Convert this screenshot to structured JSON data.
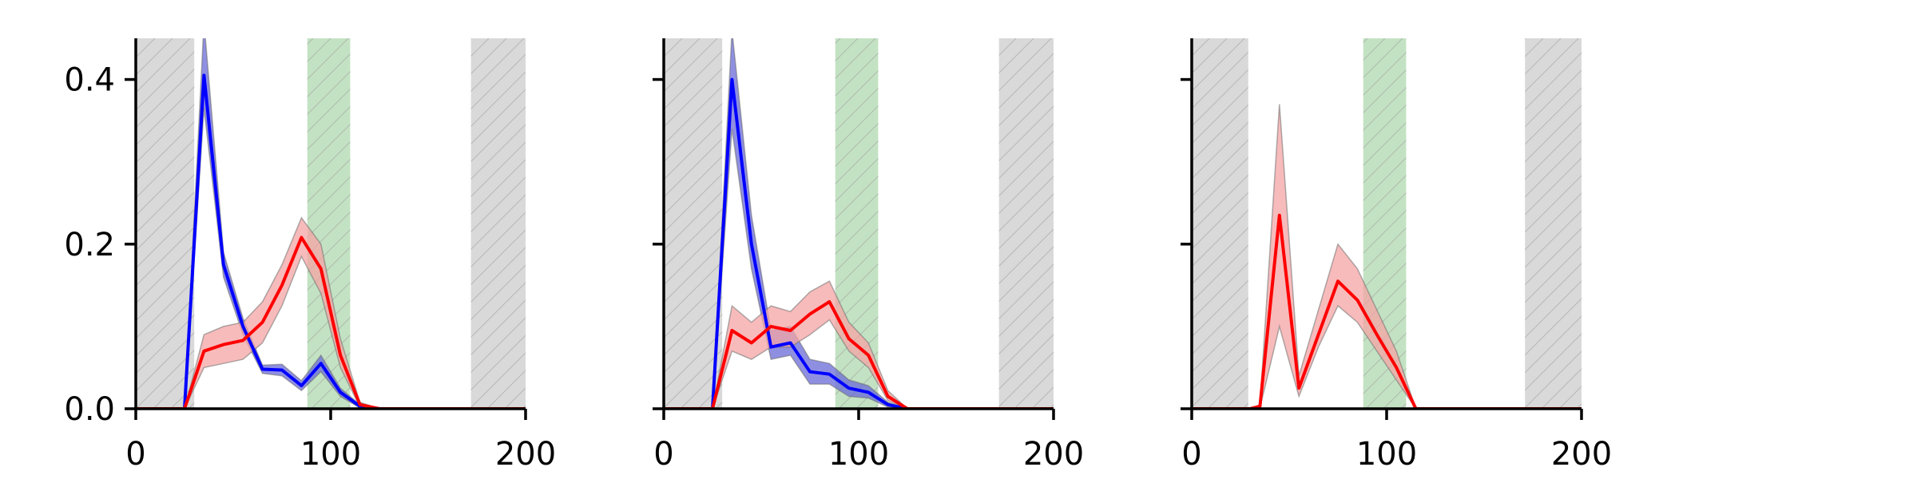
{
  "chart_data": [
    {
      "type": "line",
      "title": "",
      "xlabel": "",
      "ylabel": "",
      "xlim": [
        0,
        200
      ],
      "ylim": [
        0,
        0.45
      ],
      "xticks": [
        0,
        100,
        200
      ],
      "xtick_labels": [
        "0",
        "100",
        "200"
      ],
      "yticks": [
        0.0,
        0.2,
        0.4
      ],
      "ytick_labels": [
        "0.0",
        "0.2",
        "0.4"
      ],
      "show_ytick_labels": true,
      "grid": false,
      "shaded_regions": [
        {
          "x0": 0,
          "x1": 30,
          "color": "#d9d9d9",
          "hatch": true
        },
        {
          "x0": 88,
          "x1": 110,
          "color": "#c3e2c3",
          "hatch": true
        },
        {
          "x0": 172,
          "x1": 200,
          "color": "#d9d9d9",
          "hatch": true
        }
      ],
      "series": [
        {
          "color": "#0000ff",
          "band_color": "#6a6ad8",
          "x": [
            0,
            10,
            20,
            25,
            35,
            45,
            55,
            65,
            75,
            85,
            95,
            105,
            115,
            125,
            200
          ],
          "y": [
            0,
            0,
            0,
            0,
            0.405,
            0.175,
            0.1,
            0.048,
            0.047,
            0.028,
            0.055,
            0.02,
            0.003,
            0,
            0
          ],
          "lower": [
            0,
            0,
            0,
            0,
            0.365,
            0.16,
            0.09,
            0.043,
            0.04,
            0.022,
            0.045,
            0.015,
            0.001,
            0,
            0
          ],
          "upper": [
            0,
            0,
            0,
            0,
            0.47,
            0.19,
            0.11,
            0.053,
            0.054,
            0.034,
            0.065,
            0.025,
            0.005,
            0,
            0
          ]
        },
        {
          "color": "#ff0000",
          "band_color": "#f4a4a4",
          "x": [
            0,
            10,
            20,
            25,
            35,
            45,
            55,
            65,
            75,
            85,
            95,
            105,
            115,
            125,
            200
          ],
          "y": [
            0,
            0,
            0,
            0,
            0.07,
            0.078,
            0.083,
            0.105,
            0.15,
            0.208,
            0.17,
            0.065,
            0.005,
            0,
            0
          ],
          "lower": [
            0,
            0,
            0,
            0,
            0.05,
            0.055,
            0.06,
            0.08,
            0.125,
            0.185,
            0.14,
            0.05,
            0.002,
            0,
            0
          ],
          "upper": [
            0,
            0,
            0,
            0,
            0.09,
            0.1,
            0.105,
            0.13,
            0.175,
            0.232,
            0.2,
            0.085,
            0.008,
            0,
            0
          ]
        }
      ]
    },
    {
      "type": "line",
      "title": "",
      "xlabel": "",
      "ylabel": "",
      "xlim": [
        0,
        200
      ],
      "ylim": [
        0,
        0.45
      ],
      "xticks": [
        0,
        100,
        200
      ],
      "xtick_labels": [
        "0",
        "100",
        "200"
      ],
      "yticks": [
        0.0,
        0.2,
        0.4
      ],
      "ytick_labels": [
        "",
        "",
        ""
      ],
      "show_ytick_labels": false,
      "grid": false,
      "shaded_regions": [
        {
          "x0": 0,
          "x1": 30,
          "color": "#d9d9d9",
          "hatch": true
        },
        {
          "x0": 88,
          "x1": 110,
          "color": "#c3e2c3",
          "hatch": true
        },
        {
          "x0": 172,
          "x1": 200,
          "color": "#d9d9d9",
          "hatch": true
        }
      ],
      "series": [
        {
          "color": "#0000ff",
          "band_color": "#6a6ad8",
          "x": [
            0,
            10,
            20,
            25,
            35,
            45,
            55,
            65,
            75,
            85,
            95,
            105,
            115,
            125,
            200
          ],
          "y": [
            0,
            0,
            0,
            0,
            0.4,
            0.2,
            0.075,
            0.08,
            0.045,
            0.042,
            0.025,
            0.02,
            0.005,
            0,
            0
          ],
          "lower": [
            0,
            0,
            0,
            0,
            0.34,
            0.17,
            0.06,
            0.065,
            0.03,
            0.03,
            0.015,
            0.013,
            0.002,
            0,
            0
          ],
          "upper": [
            0,
            0,
            0,
            0,
            0.46,
            0.235,
            0.095,
            0.1,
            0.06,
            0.055,
            0.035,
            0.028,
            0.008,
            0,
            0
          ]
        },
        {
          "color": "#ff0000",
          "band_color": "#f4a4a4",
          "x": [
            0,
            10,
            20,
            25,
            35,
            45,
            55,
            65,
            75,
            85,
            95,
            105,
            115,
            125,
            200
          ],
          "y": [
            0,
            0,
            0,
            0,
            0.095,
            0.08,
            0.1,
            0.095,
            0.115,
            0.13,
            0.085,
            0.065,
            0.015,
            0,
            0
          ],
          "lower": [
            0,
            0,
            0,
            0,
            0.07,
            0.06,
            0.075,
            0.075,
            0.09,
            0.108,
            0.07,
            0.05,
            0.01,
            0,
            0
          ],
          "upper": [
            0,
            0,
            0,
            0,
            0.125,
            0.105,
            0.125,
            0.118,
            0.142,
            0.155,
            0.105,
            0.08,
            0.022,
            0,
            0
          ]
        }
      ]
    },
    {
      "type": "line",
      "title": "",
      "xlabel": "",
      "ylabel": "",
      "xlim": [
        0,
        200
      ],
      "ylim": [
        0,
        0.45
      ],
      "xticks": [
        0,
        100,
        200
      ],
      "xtick_labels": [
        "0",
        "100",
        "200"
      ],
      "yticks": [
        0.0,
        0.2,
        0.4
      ],
      "ytick_labels": [
        "",
        "",
        ""
      ],
      "show_ytick_labels": false,
      "grid": false,
      "shaded_regions": [
        {
          "x0": 0,
          "x1": 29,
          "color": "#d9d9d9",
          "hatch": true
        },
        {
          "x0": 88,
          "x1": 110,
          "color": "#c3e2c3",
          "hatch": true
        },
        {
          "x0": 171,
          "x1": 200,
          "color": "#d9d9d9",
          "hatch": true
        }
      ],
      "series": [
        {
          "color": "#ff0000",
          "band_color": "#f4a4a4",
          "x": [
            0,
            20,
            30,
            35,
            45,
            55,
            65,
            75,
            85,
            95,
            105,
            115,
            125,
            200
          ],
          "y": [
            0,
            0,
            0,
            0.003,
            0.235,
            0.025,
            0.09,
            0.155,
            0.132,
            0.09,
            0.05,
            0,
            0,
            0
          ],
          "lower": [
            0,
            0,
            0,
            0.001,
            0.1,
            0.015,
            0.075,
            0.125,
            0.105,
            0.07,
            0.035,
            0,
            0,
            0
          ],
          "upper": [
            0,
            0,
            0,
            0.005,
            0.37,
            0.04,
            0.12,
            0.2,
            0.17,
            0.12,
            0.07,
            0,
            0,
            0
          ]
        }
      ]
    }
  ]
}
